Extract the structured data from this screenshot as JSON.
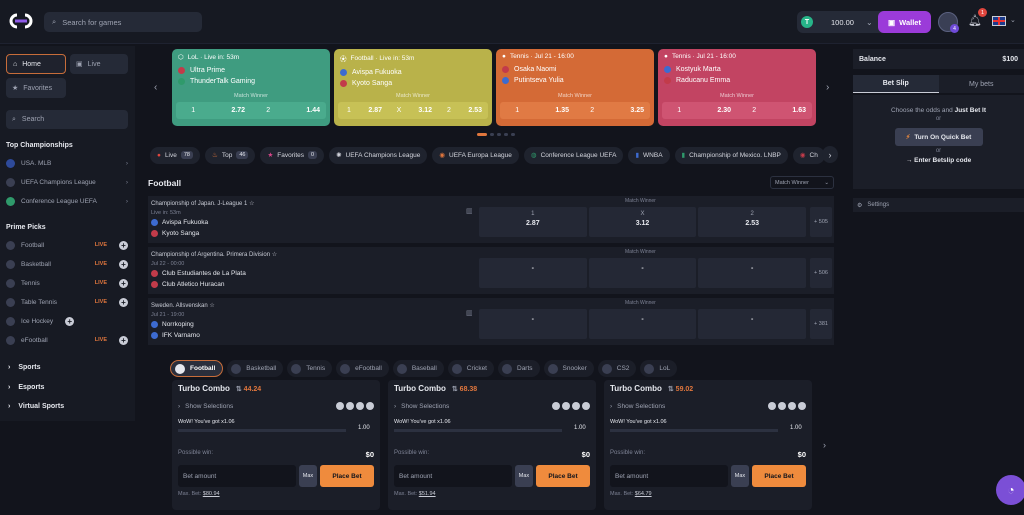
{
  "header": {
    "search_placeholder": "Search for games",
    "balance": "100.00",
    "wallet_label": "Wallet",
    "avatar_badge": "4",
    "notif_count": "1"
  },
  "sidebar": {
    "home": "Home",
    "live": "Live",
    "favorites": "Favorites",
    "search": "Search",
    "top_title": "Top Championships",
    "top": [
      "USA. MLB",
      "UEFA Champions League",
      "Conference League UEFA"
    ],
    "prime_title": "Prime Picks",
    "prime": [
      {
        "label": "Football",
        "live": "LIVE"
      },
      {
        "label": "Basketball",
        "live": "LIVE"
      },
      {
        "label": "Tennis",
        "live": "LIVE"
      },
      {
        "label": "Table Tennis",
        "live": "LIVE"
      },
      {
        "label": "Ice Hockey",
        "live": ""
      },
      {
        "label": "eFootball",
        "live": "LIVE"
      }
    ],
    "cats": [
      "Sports",
      "Esports",
      "Virtual Sports"
    ]
  },
  "featured": [
    {
      "header": "LoL · Live in: 53m",
      "team1": "Ultra Prime",
      "team2": "ThunderTalk Gaming",
      "market": "Match Winner",
      "o1l": "1",
      "o1": "2.72",
      "oxl": "2",
      "ox": "",
      "o2l": "",
      "o2": "1.44",
      "color": "#3f9c80"
    },
    {
      "header": "Football · Live in: 53m",
      "team1": "Avispa Fukuoka",
      "team2": "Kyoto Sanga",
      "market": "Match Winner",
      "o1l": "1",
      "o1": "2.87",
      "oxl": "X",
      "ox": "3.12",
      "o2l": "2",
      "o2": "2.53",
      "color": "#b9b24a"
    },
    {
      "header": "Tennis · Jul 21 - 16:00",
      "team1": "Osaka Naomi",
      "team2": "Putintseva Yulia",
      "market": "Match Winner",
      "o1l": "1",
      "o1": "1.35",
      "oxl": "2",
      "ox": "",
      "o2l": "",
      "o2": "3.25",
      "color": "#d46a36"
    },
    {
      "header": "Tennis · Jul 21 - 16:00",
      "team1": "Kostyuk Marta",
      "team2": "Raducanu Emma",
      "market": "Match Winner",
      "o1l": "1",
      "o1": "2.30",
      "oxl": "2",
      "ox": "",
      "o2l": "",
      "o2": "1.63",
      "color": "#c24462"
    }
  ],
  "chips": [
    {
      "label": "Live",
      "count": "78"
    },
    {
      "label": "Top",
      "count": "46"
    },
    {
      "label": "Favorites",
      "count": "0"
    },
    {
      "label": "UEFA Champions League",
      "count": ""
    },
    {
      "label": "UEFA Europa League",
      "count": ""
    },
    {
      "label": "Conference League UEFA",
      "count": ""
    },
    {
      "label": "WNBA",
      "count": ""
    },
    {
      "label": "Championship of Mexico. LNBP",
      "count": ""
    },
    {
      "label": "Ch",
      "count": ""
    }
  ],
  "football": {
    "title": "Football",
    "market_select": "Match Winner",
    "matches": [
      {
        "league": "Championship of Japan. J-League 1",
        "time": "Live in: 53m",
        "team1": "Avispa Fukuoka",
        "team2": "Kyoto Sanga",
        "market": "Match Winner",
        "l1": "1",
        "v1": "2.87",
        "l2": "X",
        "v2": "3.12",
        "l3": "2",
        "v3": "2.53",
        "more": "+ 505"
      },
      {
        "league": "Championship of Argentina. Primera Division",
        "time": "Jul 22 - 00:00",
        "team1": "Club Estudiantes de La Plata",
        "team2": "Club Atletico Huracan",
        "market": "Match Winner",
        "l1": "",
        "v1": "-",
        "l2": "",
        "v2": "-",
        "l3": "",
        "v3": "-",
        "more": "+ 506"
      },
      {
        "league": "Sweden. Allsvenskan",
        "time": "Jul 21 - 19:00",
        "team1": "Norrkoping",
        "team2": "IFK Varnamo",
        "market": "Match Winner",
        "l1": "",
        "v1": "-",
        "l2": "",
        "v2": "-",
        "l3": "",
        "v3": "-",
        "more": "+ 381"
      }
    ]
  },
  "sport_tabs": [
    "Football",
    "Basketball",
    "Tennis",
    "eFootball",
    "Baseball",
    "Cricket",
    "Darts",
    "Snooker",
    "CS2",
    "LoL"
  ],
  "combos": [
    {
      "title": "Turbo Combo",
      "value": "44.24",
      "show": "Show Selections",
      "wow": "WoW! You've got x1.06",
      "bar_value": "1.00",
      "possible": "Possible win:",
      "win": "$0",
      "bet_placeholder": "Bet amount",
      "max": "Max",
      "place": "Place Bet",
      "maxbet_label": "Max. Bet:",
      "maxbet": "$80.94"
    },
    {
      "title": "Turbo Combo",
      "value": "68.38",
      "show": "Show Selections",
      "wow": "WoW! You've got x1.06",
      "bar_value": "1.00",
      "possible": "Possible win:",
      "win": "$0",
      "bet_placeholder": "Bet amount",
      "max": "Max",
      "place": "Place Bet",
      "maxbet_label": "Max. Bet:",
      "maxbet": "$51.94"
    },
    {
      "title": "Turbo Combo",
      "value": "59.02",
      "show": "Show Selections",
      "wow": "WoW! You've got x1.06",
      "bar_value": "1.00",
      "possible": "Possible win:",
      "win": "$0",
      "bet_placeholder": "Bet amount",
      "max": "Max",
      "place": "Place Bet",
      "maxbet_label": "Max. Bet:",
      "maxbet": "$64.79"
    }
  ],
  "right": {
    "balance_label": "Balance",
    "balance": "$100",
    "tab_slip": "Bet Slip",
    "tab_mybets": "My bets",
    "line1a": "Choose the odds and ",
    "line1b": "Just Bet It",
    "or": "or",
    "quick": "Turn On Quick Bet",
    "code": "→ Enter Betslip code",
    "settings": "Settings"
  }
}
